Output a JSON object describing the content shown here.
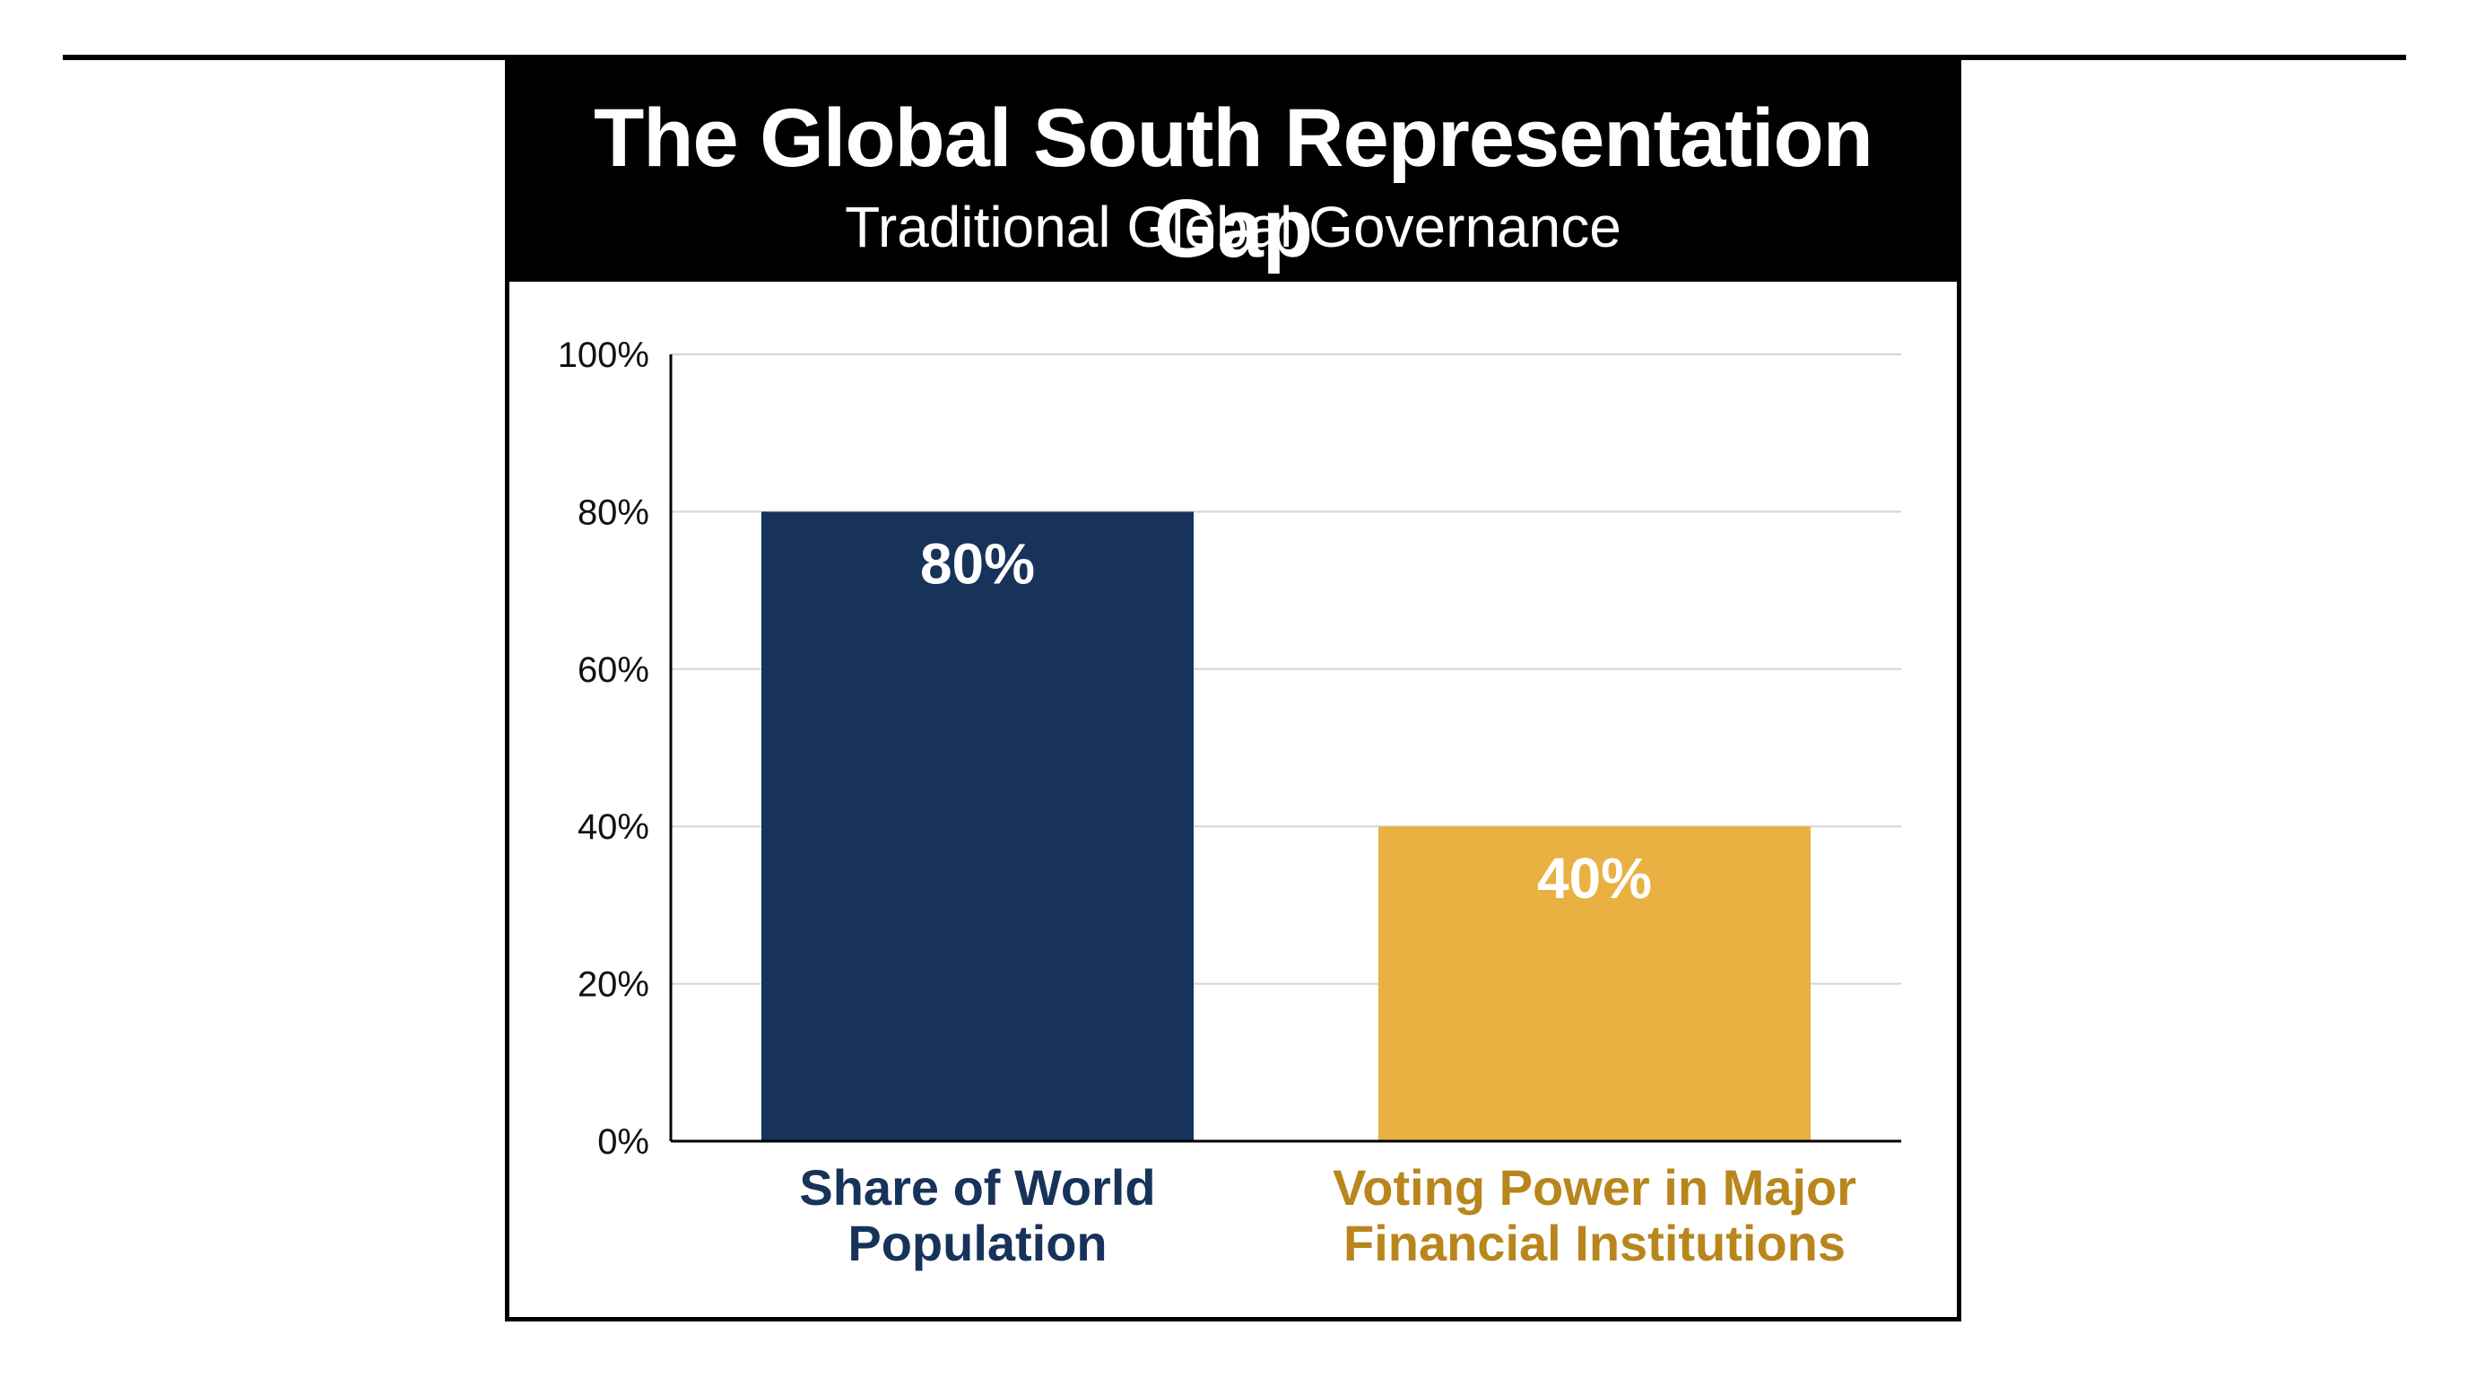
{
  "chart_data": {
    "type": "bar",
    "title": "The Global South Representation Gap",
    "subtitle": "Traditional Global Governance",
    "categories": [
      "Share of World Population",
      "Voting Power in Major Financial Institutions"
    ],
    "category_label_lines": [
      [
        "Share of World",
        "Population"
      ],
      [
        "Voting Power in Major",
        "Financial Institutions"
      ]
    ],
    "values": [
      80,
      40
    ],
    "data_labels": [
      "80%",
      "40%"
    ],
    "bar_colors": [
      "#17335a",
      "#e8b141"
    ],
    "category_label_colors": [
      "#17335a",
      "#b8861c"
    ],
    "ylim": [
      0,
      100
    ],
    "yticks": [
      0,
      20,
      40,
      60,
      80,
      100
    ],
    "ytick_labels": [
      "0%",
      "20%",
      "40%",
      "60%",
      "80%",
      "100%"
    ],
    "xlabel": "",
    "ylabel": "",
    "grid": true,
    "legend": "none"
  }
}
